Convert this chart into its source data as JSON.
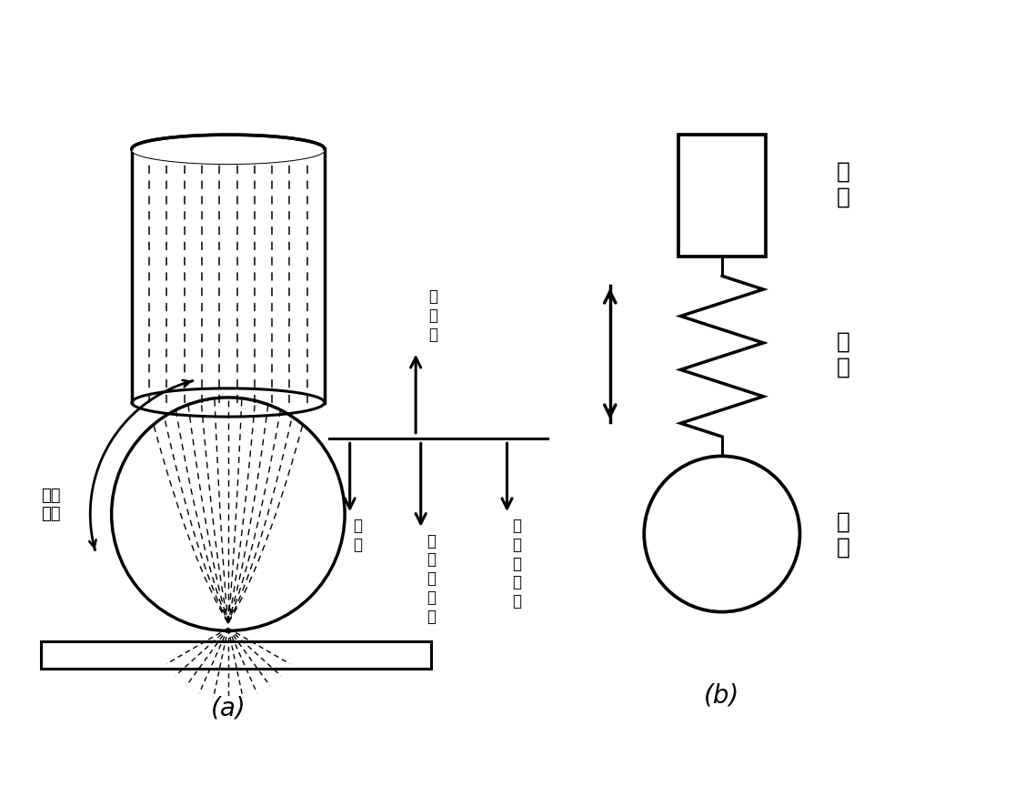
{
  "bg_color": "#ffffff",
  "line_color": "#000000",
  "label_a": "(a)",
  "label_b": "(b)",
  "text_surface_tension": "表面\n张力",
  "text_spot_force": "斑\n点\n力",
  "text_gravity": "重\n力",
  "text_ion_flow": "等\n离\n子\n流\n力",
  "text_em_shrink": "电\n磁\n收\n缩\n力",
  "text_wire": "焊\n丝",
  "text_neck": "颈\n缩",
  "text_droplet": "熔\n滴"
}
